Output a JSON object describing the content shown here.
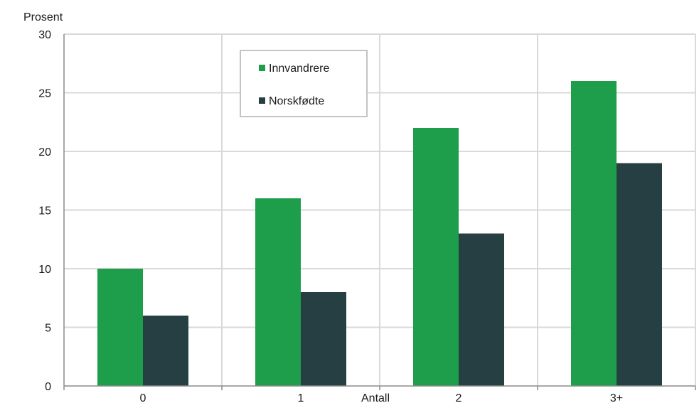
{
  "chart_data": {
    "type": "bar",
    "title": "",
    "ylabel": "Prosent",
    "xlabel": "Antall",
    "ylim": [
      0,
      30
    ],
    "yticks": [
      0,
      5,
      10,
      15,
      20,
      25,
      30
    ],
    "categories": [
      "0",
      "1",
      "2",
      "3+"
    ],
    "series": [
      {
        "name": "Innvandrere",
        "color": "#1e9e4a",
        "values": [
          10,
          16,
          22,
          26
        ]
      },
      {
        "name": "Norskfødte",
        "color": "#263f43",
        "values": [
          6,
          8,
          13,
          19
        ]
      }
    ],
    "grid": true,
    "legend_position": "top-center"
  },
  "colors": {
    "grid": "#d9d9d9",
    "axis": "#8c8c8c",
    "text": "#1a1a1a"
  }
}
